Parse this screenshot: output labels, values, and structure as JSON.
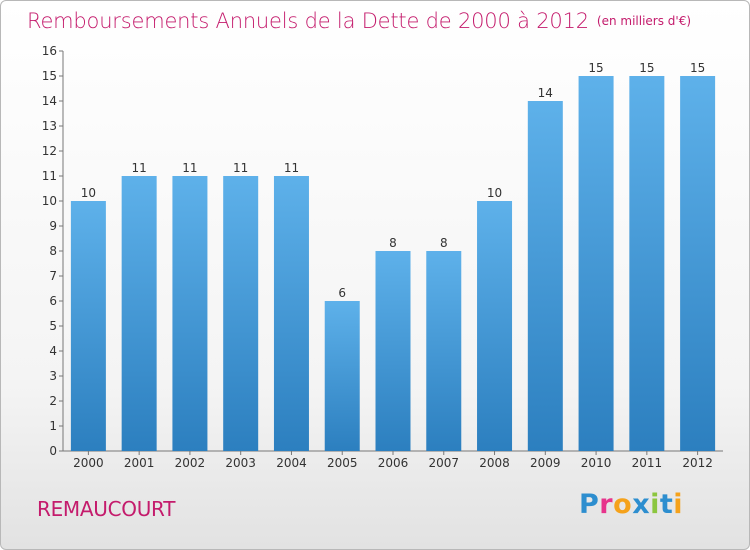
{
  "title": "Remboursements Annuels de la Dette de 2000 à 2012",
  "unit_note": "(en milliers d'€)",
  "commune": "REMAUCOURT",
  "logo": {
    "letters": [
      "P",
      "r",
      "o",
      "x",
      "i",
      "t",
      "i"
    ],
    "colors": [
      "#2d8ecf",
      "#e7348c",
      "#f5a21b",
      "#2d8ecf",
      "#8cc63f",
      "#2d8ecf",
      "#f5a21b"
    ]
  },
  "colors": {
    "bar": "#4a9fdd",
    "bar_light": "#5eb1ea",
    "bar_dark": "#2c7fbf",
    "accent": "#c41b6c"
  },
  "chart_data": {
    "type": "bar",
    "categories": [
      "2000",
      "2001",
      "2002",
      "2003",
      "2004",
      "2005",
      "2006",
      "2007",
      "2008",
      "2009",
      "2010",
      "2011",
      "2012"
    ],
    "values": [
      10,
      11,
      11,
      11,
      11,
      6,
      8,
      8,
      10,
      14,
      15,
      15,
      15
    ],
    "ylim": [
      0,
      16
    ],
    "yticks": [
      0,
      1,
      2,
      3,
      4,
      5,
      6,
      7,
      8,
      9,
      10,
      11,
      12,
      13,
      14,
      15,
      16
    ],
    "grid": false
  }
}
